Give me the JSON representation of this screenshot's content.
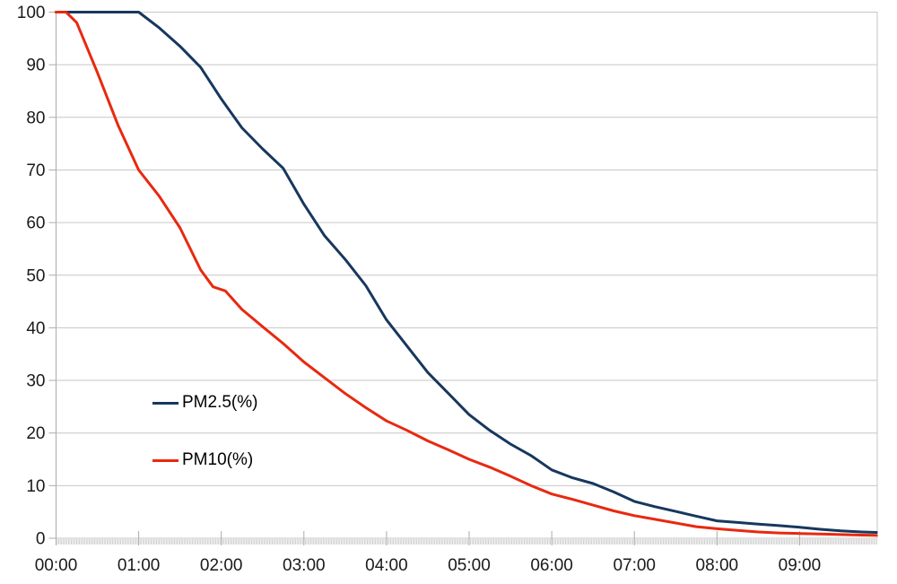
{
  "chart_data": {
    "type": "line",
    "title": "",
    "xlabel": "",
    "ylabel": "",
    "ylim": [
      0,
      100
    ],
    "xlim_hours": [
      0,
      9.94
    ],
    "y_ticks": [
      0,
      10,
      20,
      30,
      40,
      50,
      60,
      70,
      80,
      90,
      100
    ],
    "x_tick_hours": [
      0,
      1,
      2,
      3,
      4,
      5,
      6,
      7,
      8,
      9
    ],
    "x_tick_labels": [
      "00:00",
      "01:00",
      "02:00",
      "03:00",
      "04:00",
      "05:00",
      "06:00",
      "07:00",
      "08:00",
      "09:00"
    ],
    "minor_x_tick_interval_minutes": 1,
    "grid": "horizontal-only",
    "legend_position": "inside-left",
    "series": [
      {
        "name": "PM2.5(%)",
        "color": "#17375e",
        "points": [
          [
            0,
            100
          ],
          [
            0.25,
            100
          ],
          [
            0.5,
            100
          ],
          [
            0.75,
            100
          ],
          [
            1.0,
            100
          ],
          [
            1.25,
            97
          ],
          [
            1.5,
            93.5
          ],
          [
            1.75,
            89.5
          ],
          [
            2.0,
            83.5
          ],
          [
            2.25,
            78
          ],
          [
            2.5,
            74
          ],
          [
            2.75,
            70.3
          ],
          [
            3.0,
            63.5
          ],
          [
            3.25,
            57.5
          ],
          [
            3.5,
            53
          ],
          [
            3.75,
            48
          ],
          [
            4.0,
            41.5
          ],
          [
            4.25,
            36.5
          ],
          [
            4.5,
            31.5
          ],
          [
            4.75,
            27.5
          ],
          [
            5.0,
            23.5
          ],
          [
            5.25,
            20.5
          ],
          [
            5.5,
            17.9
          ],
          [
            5.75,
            15.7
          ],
          [
            6.0,
            13
          ],
          [
            6.25,
            11.5
          ],
          [
            6.5,
            10.4
          ],
          [
            6.75,
            8.8
          ],
          [
            7.0,
            7
          ],
          [
            7.25,
            6
          ],
          [
            7.5,
            5.1
          ],
          [
            7.75,
            4.2
          ],
          [
            8.0,
            3.3
          ],
          [
            8.25,
            3.0
          ],
          [
            8.5,
            2.7
          ],
          [
            8.75,
            2.4
          ],
          [
            9.0,
            2.1
          ],
          [
            9.25,
            1.7
          ],
          [
            9.5,
            1.4
          ],
          [
            9.75,
            1.2
          ],
          [
            9.93,
            1.1
          ]
        ]
      },
      {
        "name": "PM10(%)",
        "color": "#e8290f",
        "points": [
          [
            0,
            100
          ],
          [
            0.12,
            100
          ],
          [
            0.25,
            98
          ],
          [
            0.5,
            88.5
          ],
          [
            0.75,
            78.5
          ],
          [
            1.0,
            70
          ],
          [
            1.25,
            65
          ],
          [
            1.5,
            59
          ],
          [
            1.75,
            51
          ],
          [
            1.9,
            47.8
          ],
          [
            2.05,
            47
          ],
          [
            2.25,
            43.5
          ],
          [
            2.5,
            40.2
          ],
          [
            2.75,
            37
          ],
          [
            3.0,
            33.5
          ],
          [
            3.25,
            30.5
          ],
          [
            3.5,
            27.5
          ],
          [
            3.75,
            24.8
          ],
          [
            4.0,
            22.3
          ],
          [
            4.25,
            20.5
          ],
          [
            4.5,
            18.5
          ],
          [
            4.75,
            16.8
          ],
          [
            5.0,
            15
          ],
          [
            5.25,
            13.5
          ],
          [
            5.5,
            11.8
          ],
          [
            5.75,
            10
          ],
          [
            6.0,
            8.4
          ],
          [
            6.25,
            7.4
          ],
          [
            6.5,
            6.3
          ],
          [
            6.75,
            5.2
          ],
          [
            7.0,
            4.3
          ],
          [
            7.25,
            3.6
          ],
          [
            7.5,
            2.9
          ],
          [
            7.75,
            2.2
          ],
          [
            8.0,
            1.8
          ],
          [
            8.25,
            1.5
          ],
          [
            8.5,
            1.2
          ],
          [
            8.75,
            1.0
          ],
          [
            9.0,
            0.9
          ],
          [
            9.25,
            0.8
          ],
          [
            9.5,
            0.7
          ],
          [
            9.75,
            0.6
          ],
          [
            9.93,
            0.55
          ]
        ]
      }
    ],
    "colors": {
      "gridline": "#c6c6c6",
      "axis": "#ababab",
      "minor_ticks": "#c9c9c9",
      "text": "#1a1a1a"
    }
  }
}
